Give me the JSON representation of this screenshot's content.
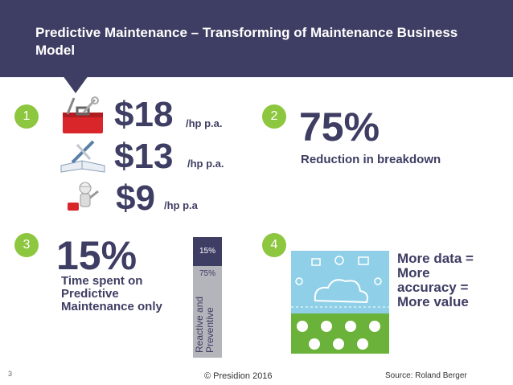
{
  "slide": {
    "title": "Predictive Maintenance – Transforming of Maintenance Business Model",
    "number": "3"
  },
  "quadrant1": {
    "badge": "1",
    "rows": [
      {
        "value": "$18",
        "unit": "/hp p.a.",
        "icon": "toolbox-icon"
      },
      {
        "value": "$13",
        "unit": "/hp p.a.",
        "icon": "notebook-pencil-icon"
      },
      {
        "value": "$9",
        "unit": "/hp p.a",
        "icon": "worker-icon"
      }
    ]
  },
  "quadrant2": {
    "badge": "2",
    "value": "75%",
    "caption": "Reduction in breakdown"
  },
  "quadrant3": {
    "badge": "3",
    "value": "15%",
    "caption_lines": [
      "Time spent on",
      "Predictive",
      "Maintenance only"
    ],
    "bar": {
      "top_label": "15%",
      "bottom_label": "75%",
      "bottom_caption_lines": [
        "Reactive and",
        "Preventive"
      ],
      "top_share": 0.15,
      "bottom_share": 0.75,
      "colors": {
        "top": "#3e3d63",
        "bottom": "#b4b4bb"
      }
    }
  },
  "quadrant4": {
    "badge": "4",
    "caption_lines": [
      "More data =",
      "More",
      "accuracy =",
      "More value"
    ],
    "graphic": "cloud-data-icon"
  },
  "footer": {
    "copyright": "© Presidion 2016",
    "source": "Source: Roland Berger"
  },
  "colors": {
    "banner": "#3e3d63",
    "accent": "#8dc63f",
    "text": "#3e3d63"
  }
}
